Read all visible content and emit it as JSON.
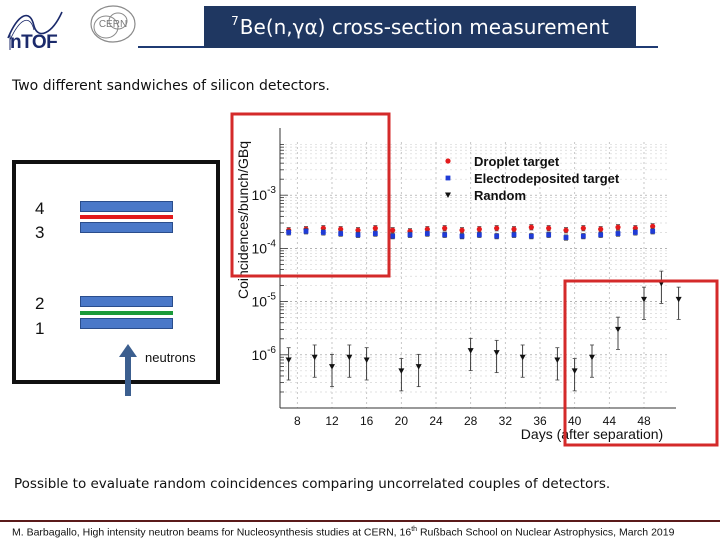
{
  "header": {
    "logo_ntof_text": "nTOF",
    "logo_cern_text": "CERN",
    "title_sup": "7",
    "title_main": "Be(n,γα) cross-section measurement"
  },
  "subtitle": "Two different sandwiches of silicon detectors.",
  "detector_diagram": {
    "labels": [
      "4",
      "3",
      "2",
      "1"
    ],
    "neutrons_label": "neutrons",
    "colors": {
      "detector": "#4a78c8",
      "foil_upper": "#e31a1c",
      "foil_lower": "#1a9a3a",
      "arrow": "#3c5f8f"
    }
  },
  "chart_data": {
    "type": "scatter",
    "xlabel": "Days (after separation)",
    "ylabel": "Coincidences/bunch/GBq",
    "xticks": [
      8,
      12,
      16,
      20,
      24,
      28,
      32,
      36,
      40,
      44,
      48
    ],
    "xlim": [
      6,
      51
    ],
    "ylim": [
      1e-07,
      0.01
    ],
    "yscale": "log",
    "ytick_labels": [
      {
        "base": "10",
        "exp": "-3",
        "value": 0.001
      },
      {
        "base": "10",
        "exp": "-4",
        "value": 0.0001
      },
      {
        "base": "10",
        "exp": "-5",
        "value": 1e-05
      },
      {
        "base": "10",
        "exp": "-6",
        "value": 1e-06
      }
    ],
    "legend": {
      "position": "top-right"
    },
    "highlight_color": "#d42a2a",
    "series": [
      {
        "name": "Droplet target",
        "marker": "circle",
        "color": "#e31a1c",
        "points": [
          [
            7,
            0.00022
          ],
          [
            9,
            0.00023
          ],
          [
            11,
            0.00024
          ],
          [
            13,
            0.00023
          ],
          [
            15,
            0.00022
          ],
          [
            17,
            0.00024
          ],
          [
            19,
            0.00022
          ],
          [
            21,
            0.00021
          ],
          [
            23,
            0.00023
          ],
          [
            25,
            0.00024
          ],
          [
            27,
            0.00022
          ],
          [
            29,
            0.00023
          ],
          [
            31,
            0.00024
          ],
          [
            33,
            0.00023
          ],
          [
            35,
            0.00025
          ],
          [
            37,
            0.00024
          ],
          [
            39,
            0.00022
          ],
          [
            41,
            0.00024
          ],
          [
            43,
            0.00023
          ],
          [
            45,
            0.00025
          ],
          [
            47,
            0.00024
          ],
          [
            49,
            0.00026
          ]
        ]
      },
      {
        "name": "Electrodeposited target",
        "marker": "square",
        "color": "#1f3bd6",
        "points": [
          [
            7,
            0.0002
          ],
          [
            9,
            0.00021
          ],
          [
            11,
            0.0002
          ],
          [
            13,
            0.00019
          ],
          [
            15,
            0.00018
          ],
          [
            17,
            0.00019
          ],
          [
            19,
            0.00017
          ],
          [
            21,
            0.00018
          ],
          [
            23,
            0.00019
          ],
          [
            25,
            0.00018
          ],
          [
            27,
            0.00017
          ],
          [
            29,
            0.00018
          ],
          [
            31,
            0.00017
          ],
          [
            33,
            0.00018
          ],
          [
            35,
            0.00017
          ],
          [
            37,
            0.00018
          ],
          [
            39,
            0.00016
          ],
          [
            41,
            0.00017
          ],
          [
            43,
            0.00018
          ],
          [
            45,
            0.00019
          ],
          [
            47,
            0.0002
          ],
          [
            49,
            0.00021
          ]
        ]
      },
      {
        "name": "Random",
        "marker": "triangle-down",
        "color": "#111111",
        "points": [
          [
            7,
            8e-07
          ],
          [
            10,
            9e-07
          ],
          [
            12,
            6e-07
          ],
          [
            14,
            9e-07
          ],
          [
            16,
            8e-07
          ],
          [
            20,
            5e-07
          ],
          [
            22,
            6e-07
          ],
          [
            28,
            1.2e-06
          ],
          [
            31,
            1.1e-06
          ],
          [
            34,
            9e-07
          ],
          [
            38,
            8e-07
          ],
          [
            40,
            5e-07
          ],
          [
            42,
            9e-07
          ],
          [
            45,
            3e-06
          ],
          [
            48,
            1.1e-05
          ],
          [
            50,
            2.2e-05
          ],
          [
            52,
            1.1e-05
          ]
        ]
      }
    ]
  },
  "bottom_text": "Possible to evaluate random coincidences comparing uncorrelated couples of detectors.",
  "footer": {
    "text_before": "M. Barbagallo, High intensity neutron beams for Nucleosynthesis studies at CERN, 16",
    "sup": "th",
    "text_after": " Rußbach School on Nuclear Astrophysics, March  2019"
  }
}
